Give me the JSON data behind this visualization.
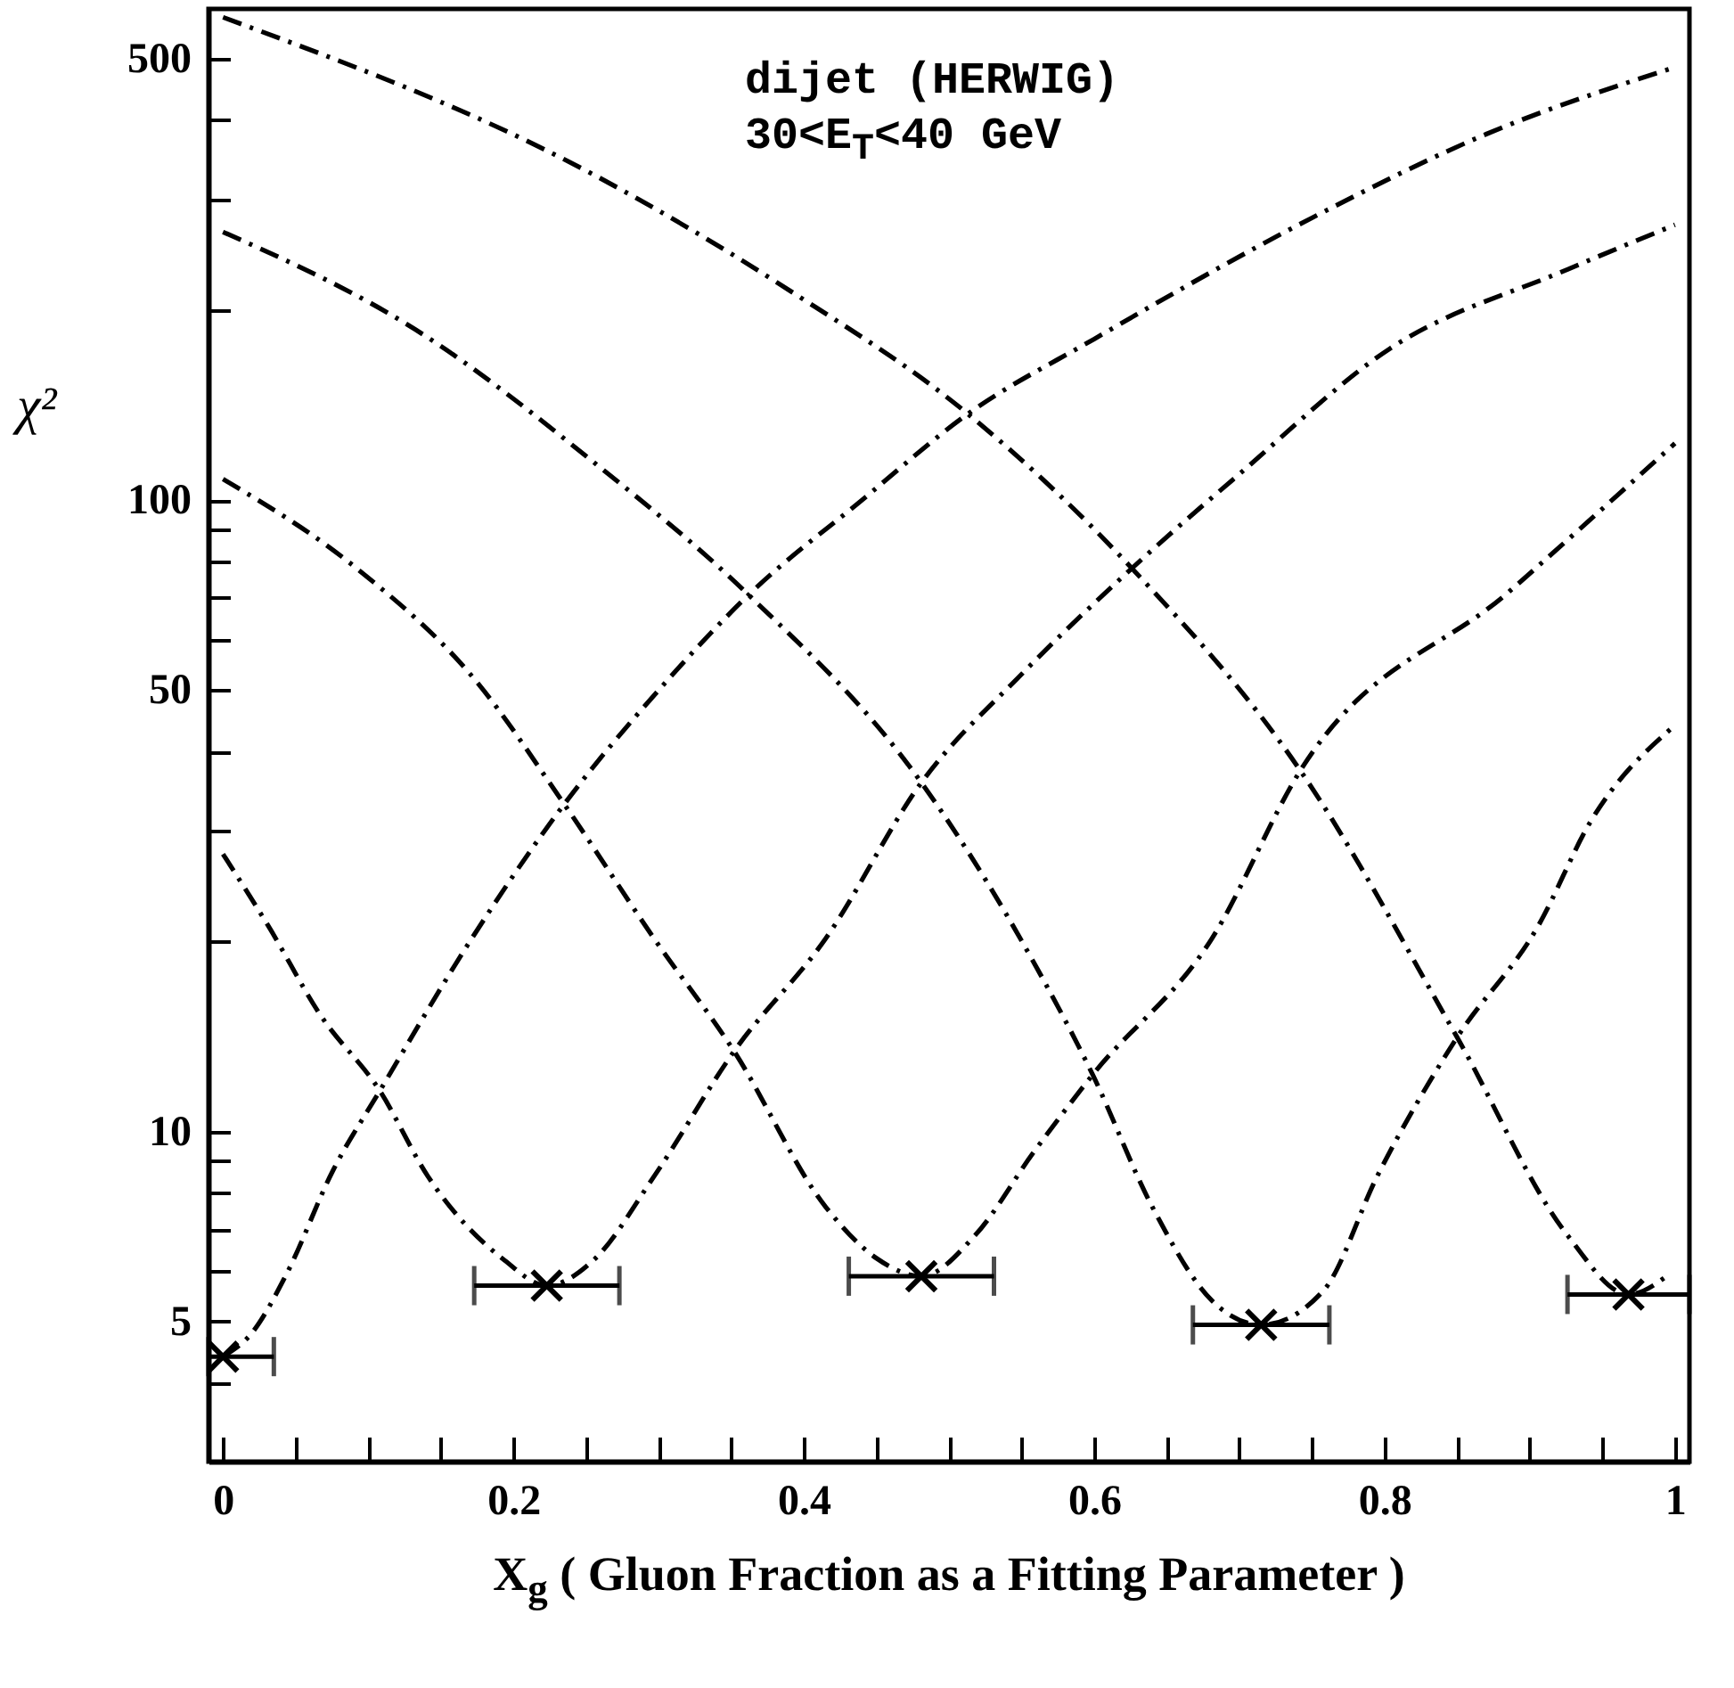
{
  "chart_data": {
    "type": "line",
    "xlabel": "X$_{g}$ ( Gluon Fraction as a Fitting Parameter )",
    "ylabel": "χ²",
    "annotations": [
      "dijet (HERWIG)",
      "30<E$_{T}$<40 GeV"
    ],
    "log": "y",
    "xlim": [
      -0.01,
      1.01
    ],
    "ylim": [
      3,
      600
    ],
    "xticks": [
      0,
      {
        "value": 0.05,
        "label": null
      },
      {
        "value": 0.1,
        "label": null
      },
      {
        "value": 0.15,
        "label": null
      },
      0.2,
      {
        "value": 0.25,
        "label": null
      },
      {
        "value": 0.3,
        "label": null
      },
      {
        "value": 0.35,
        "label": null
      },
      0.4,
      {
        "value": 0.45,
        "label": null
      },
      {
        "value": 0.5,
        "label": null
      },
      {
        "value": 0.55,
        "label": null
      },
      0.6,
      {
        "value": 0.65,
        "label": null
      },
      {
        "value": 0.7,
        "label": null
      },
      {
        "value": 0.75,
        "label": null
      },
      0.8,
      {
        "value": 0.85,
        "label": null
      },
      {
        "value": 0.9,
        "label": null
      },
      {
        "value": 0.95,
        "label": null
      },
      1
    ],
    "yticks": [
      {
        "value": 4,
        "label": null
      },
      5,
      {
        "value": 6,
        "label": null
      },
      {
        "value": 7,
        "label": null
      },
      {
        "value": 8,
        "label": null
      },
      {
        "value": 9,
        "label": null
      },
      10,
      {
        "value": 20,
        "label": null
      },
      {
        "value": 30,
        "label": null
      },
      {
        "value": 40,
        "label": null
      },
      50,
      {
        "value": 60,
        "label": null
      },
      {
        "value": 70,
        "label": null
      },
      {
        "value": 80,
        "label": null
      },
      {
        "value": 90,
        "label": null
      },
      100,
      {
        "value": 200,
        "label": null
      },
      {
        "value": 300,
        "label": null
      },
      {
        "value": 400,
        "label": null
      },
      500
    ],
    "grid": false,
    "line_style": "dashed",
    "series": [
      {
        "color": "#000000",
        "x": [
          0,
          0.02,
          0.043,
          0.076,
          0.108,
          0.17,
          0.235,
          0.3,
          0.362,
          0.44,
          0.513,
          0.6,
          0.75,
          0.87,
          1
        ],
        "values": [
          4.4,
          4.8,
          5.9,
          8.7,
          11.6,
          20,
          33,
          50,
          70.8,
          100,
          137,
          180,
          280,
          380,
          485
        ]
      },
      {
        "color": "#000000",
        "x": [
          0,
          0.031,
          0.067,
          0.108,
          0.141,
          0.194,
          0.223,
          0.255,
          0.297,
          0.352,
          0.415,
          0.481,
          0.55,
          0.626,
          0.7,
          0.804,
          0.926,
          1
        ],
        "values": [
          27.5,
          21.2,
          15.3,
          11.6,
          8.5,
          6.25,
          5.7,
          6.25,
          8.5,
          13.4,
          20.2,
          35.7,
          53,
          78,
          110,
          174,
          232,
          273
        ]
      },
      {
        "color": "#000000",
        "x": [
          0,
          0.092,
          0.174,
          0.235,
          0.297,
          0.352,
          0.415,
          0.45,
          0.481,
          0.518,
          0.558,
          0.599,
          0.681,
          0.742,
          0.886,
          1
        ],
        "values": [
          108,
          78,
          51.8,
          33,
          20.2,
          13.4,
          7.6,
          6.3,
          5.9,
          6.85,
          9.25,
          12.3,
          20.2,
          37.3,
          71.7,
          123
        ]
      },
      {
        "color": "#000000",
        "x": [
          0,
          0.133,
          0.255,
          0.362,
          0.481,
          0.558,
          0.599,
          0.64,
          0.681,
          0.715,
          0.758,
          0.795,
          0.85,
          0.906,
          0.942,
          1
        ],
        "values": [
          266,
          186,
          115,
          70.8,
          35.7,
          18.6,
          12.3,
          7.6,
          5.4,
          4.94,
          5.6,
          8.5,
          14.1,
          21.2,
          31,
          44
        ]
      },
      {
        "color": "#000000",
        "x": [
          0,
          0.255,
          0.39,
          0.513,
          0.626,
          0.742,
          0.85,
          0.926,
          0.968,
          0.996
        ],
        "values": [
          582,
          328,
          215,
          137,
          78,
          37.3,
          14.1,
          6.85,
          5.52,
          5.94
        ]
      },
      {
        "type": "scatter",
        "color": "#000000",
        "marker": "cross",
        "x": [
          0,
          0.223,
          0.481,
          0.715,
          0.968
        ],
        "values": [
          4.4,
          5.7,
          5.9,
          4.94,
          5.52
        ],
        "xerrors": [
          [
            -0.01,
            0.035
          ],
          0.05,
          0.05,
          0.047,
          0.042
        ]
      }
    ]
  }
}
